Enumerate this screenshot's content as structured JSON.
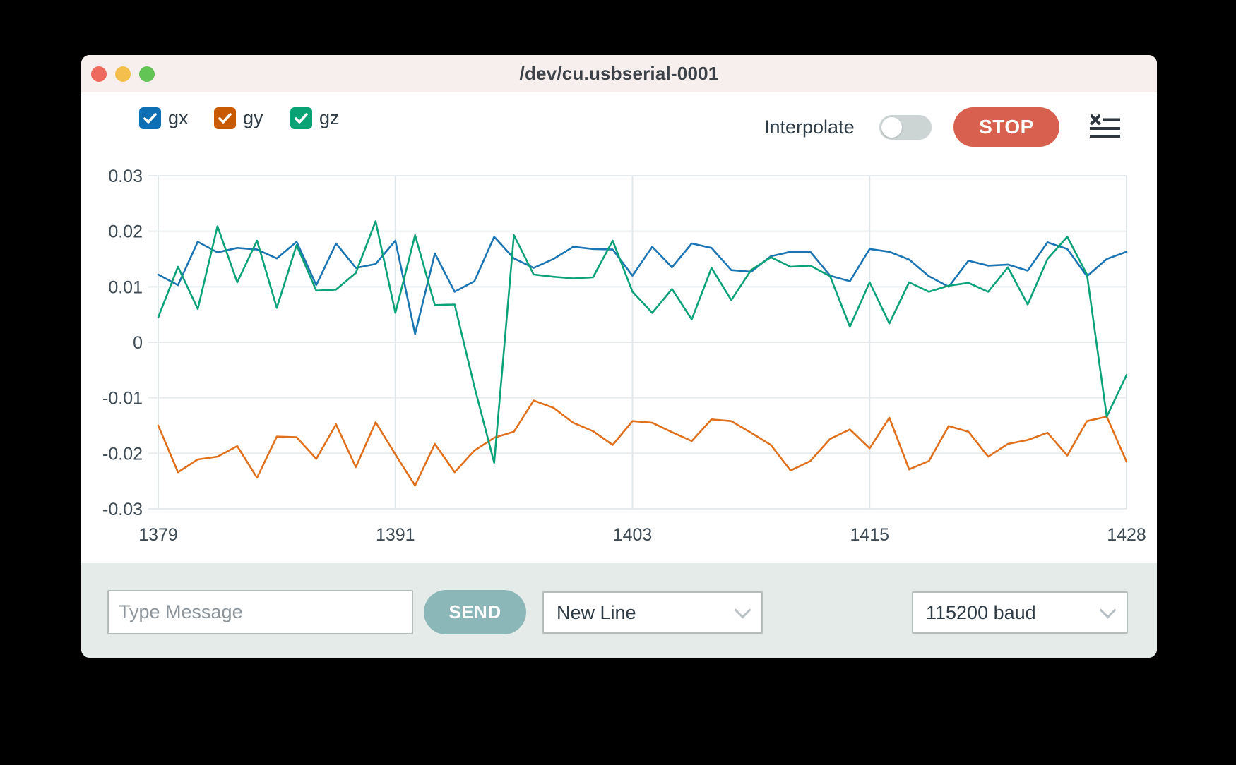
{
  "window": {
    "title": "/dev/cu.usbserial-0001"
  },
  "legend": {
    "items": [
      {
        "label": "gx",
        "color": "#0e6fb4",
        "checked": true
      },
      {
        "label": "gy",
        "color": "#c85a04",
        "checked": true
      },
      {
        "label": "gz",
        "color": "#09a275",
        "checked": true
      }
    ]
  },
  "controls": {
    "interpolate_label": "Interpolate",
    "interpolate_on": false,
    "stop_label": "STOP"
  },
  "bottom_bar": {
    "message_placeholder": "Type Message",
    "message_value": "",
    "send_label": "SEND",
    "line_ending_value": "New Line",
    "baud_value": "115200 baud"
  },
  "chart_data": {
    "type": "line",
    "title": "",
    "xlabel": "",
    "ylabel": "",
    "xlim": [
      1379,
      1428
    ],
    "ylim": [
      -0.03,
      0.03
    ],
    "xticks": [
      1379,
      1391,
      1403,
      1415,
      1428
    ],
    "yticks": [
      0.03,
      0.02,
      0.01,
      0,
      -0.01,
      -0.02,
      -0.03
    ],
    "grid": true,
    "legend_position": "top-left-checkboxes",
    "x": [
      1379,
      1380,
      1381,
      1382,
      1383,
      1384,
      1385,
      1386,
      1387,
      1388,
      1389,
      1390,
      1391,
      1392,
      1393,
      1394,
      1395,
      1396,
      1397,
      1398,
      1399,
      1400,
      1401,
      1402,
      1403,
      1404,
      1405,
      1406,
      1407,
      1408,
      1409,
      1410,
      1411,
      1412,
      1413,
      1414,
      1415,
      1416,
      1417,
      1418,
      1419,
      1420,
      1421,
      1422,
      1423,
      1424,
      1425,
      1426,
      1427,
      1428
    ],
    "series": [
      {
        "name": "gx",
        "color": "#1b75b3",
        "values": [
          0.0122,
          0.0103,
          0.0181,
          0.0162,
          0.017,
          0.0167,
          0.0151,
          0.0181,
          0.0103,
          0.0178,
          0.0134,
          0.0141,
          0.0183,
          0.0015,
          0.016,
          0.0091,
          0.011,
          0.019,
          0.0151,
          0.0134,
          0.015,
          0.0172,
          0.0168,
          0.0167,
          0.012,
          0.0172,
          0.0135,
          0.0178,
          0.017,
          0.013,
          0.0127,
          0.0155,
          0.0163,
          0.0163,
          0.012,
          0.011,
          0.0168,
          0.0163,
          0.0149,
          0.0119,
          0.01,
          0.0147,
          0.0138,
          0.014,
          0.0129,
          0.018,
          0.0168,
          0.0119,
          0.015,
          0.0163
        ]
      },
      {
        "name": "gy",
        "color": "#e0701c",
        "values": [
          -0.015,
          -0.0234,
          -0.0211,
          -0.0206,
          -0.0187,
          -0.0244,
          -0.017,
          -0.0171,
          -0.021,
          -0.0148,
          -0.0225,
          -0.0144,
          -0.0202,
          -0.0258,
          -0.0183,
          -0.0234,
          -0.0195,
          -0.0172,
          -0.0161,
          -0.0105,
          -0.0118,
          -0.0145,
          -0.016,
          -0.0185,
          -0.0142,
          -0.0145,
          -0.0162,
          -0.0178,
          -0.0139,
          -0.0142,
          -0.0163,
          -0.0185,
          -0.0231,
          -0.0214,
          -0.0174,
          -0.0157,
          -0.0191,
          -0.0136,
          -0.0229,
          -0.0214,
          -0.0151,
          -0.0161,
          -0.0206,
          -0.0183,
          -0.0176,
          -0.0163,
          -0.0204,
          -0.0142,
          -0.0134,
          -0.0215
        ]
      },
      {
        "name": "gz",
        "color": "#0ba279",
        "values": [
          0.0045,
          0.0136,
          0.006,
          0.0209,
          0.0108,
          0.0183,
          0.0062,
          0.0175,
          0.0093,
          0.0095,
          0.0125,
          0.0218,
          0.0053,
          0.0193,
          0.0067,
          0.0068,
          -0.008,
          -0.0217,
          0.0193,
          0.0122,
          0.0118,
          0.0115,
          0.0117,
          0.0183,
          0.0091,
          0.0053,
          0.0096,
          0.0041,
          0.0134,
          0.0076,
          0.013,
          0.0153,
          0.0136,
          0.0138,
          0.0119,
          0.0028,
          0.0108,
          0.0034,
          0.0108,
          0.0091,
          0.0102,
          0.0107,
          0.0091,
          0.0135,
          0.0068,
          0.015,
          0.019,
          0.0122,
          -0.0134,
          -0.0059
        ]
      }
    ]
  }
}
